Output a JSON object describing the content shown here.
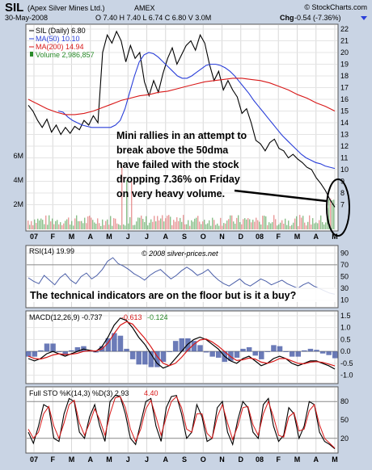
{
  "header": {
    "symbol": "SIL",
    "name": "(Apex Silver Mines Ltd.)",
    "exchange": "AMEX",
    "source": "© StockCharts.com",
    "date": "30-May-2008",
    "quote": "O 7.40  H 7.40  L 6.74  C 6.80  V 3.0M",
    "chg_label": "Chg",
    "chg_value": "-0.54 (-7.36%)"
  },
  "colors": {
    "price": "#000000",
    "ma50": "#2a3fd9",
    "ma200": "#d81818",
    "volume": "#2a8a2a",
    "macd_hist": "#3a4fa0",
    "sto_d": "#d81818",
    "panel_bg": "#ffffff"
  },
  "annotations": {
    "main": [
      "Mini rallies in an attempt to",
      "break above the 50dma",
      "have failed with the stock",
      "dropping 7.36% on Friday",
      "on very heavy volume."
    ],
    "rsi": "The technical indicators are on the floor but is it a buy?",
    "watermark": "© 2008 silver-prices.net"
  },
  "chart_data": [
    {
      "type": "line",
      "name": "price",
      "legend": [
        "SIL (Daily) 6.80",
        "MA(50) 10.10",
        "MA(200) 14.94",
        "Volume 2,986,857"
      ],
      "x_labels": [
        "07",
        "F",
        "M",
        "A",
        "M",
        "J",
        "J",
        "A",
        "S",
        "O",
        "N",
        "D",
        "08",
        "F",
        "M",
        "A",
        "M"
      ],
      "ylim": [
        6,
        22
      ],
      "y_ticks": [
        7,
        8,
        9,
        10,
        11,
        12,
        13,
        14,
        15,
        16,
        17,
        18,
        19,
        20,
        21,
        22
      ],
      "volume_ticks": [
        "6M",
        "4M",
        "2M"
      ],
      "series": [
        {
          "name": "SIL",
          "values": [
            15.5,
            15.0,
            14.2,
            13.6,
            14.3,
            13.2,
            13.8,
            13.0,
            13.6,
            13.1,
            13.7,
            13.4,
            14.2,
            13.8,
            14.6,
            14.0,
            20.0,
            21.5,
            20.8,
            21.8,
            21.0,
            19.2,
            20.6,
            19.5,
            20.0,
            17.5,
            16.3,
            17.6,
            16.6,
            18.2,
            19.5,
            20.4,
            19.0,
            19.8,
            20.6,
            21.0,
            20.2,
            21.5,
            20.8,
            19.0,
            17.6,
            18.4,
            16.8,
            17.6,
            16.8,
            16.2,
            14.8,
            15.2,
            14.0,
            12.5,
            12.2,
            11.6,
            12.3,
            12.6,
            11.8,
            11.6,
            11.0,
            11.3,
            10.9,
            10.6,
            10.2,
            10.0,
            9.3,
            8.8,
            8.2,
            7.4,
            6.8
          ]
        },
        {
          "name": "MA(50)",
          "values": [
            15.0,
            14.9,
            14.5,
            14.2,
            14.0,
            13.8,
            13.7,
            13.6,
            13.6,
            13.6,
            13.6,
            13.6,
            13.8,
            14.2,
            15.2,
            16.6,
            18.0,
            19.2,
            19.8,
            20.0,
            19.9,
            19.6,
            19.2,
            18.8,
            18.4,
            18.0,
            17.8,
            17.8,
            18.0,
            18.3,
            18.6,
            18.9,
            19.0,
            19.0,
            18.9,
            18.7,
            18.4,
            18.0,
            17.5,
            17.0,
            16.5,
            15.9,
            15.4,
            14.9,
            14.4,
            13.9,
            13.4,
            12.9,
            12.5,
            12.1,
            11.7,
            11.3,
            11.0,
            10.8,
            10.6,
            10.5,
            10.3,
            10.2,
            10.1
          ]
        },
        {
          "name": "MA(200)",
          "values": [
            16.0,
            15.6,
            15.2,
            14.9,
            14.7,
            14.7,
            14.8,
            15.0,
            15.3,
            15.6,
            15.9,
            16.1,
            16.3,
            16.4,
            16.6,
            16.7,
            16.9,
            17.1,
            17.3,
            17.5,
            17.6,
            17.7,
            17.8,
            17.8,
            17.7,
            17.6,
            17.4,
            17.1,
            16.8,
            16.4,
            16.1,
            15.7,
            15.4,
            15.0
          ]
        }
      ]
    },
    {
      "type": "line",
      "name": "RSI(14)",
      "legend": "RSI(14) 19.99",
      "ylim": [
        0,
        100
      ],
      "y_ticks": [
        10,
        30,
        50,
        70,
        90
      ],
      "series": [
        {
          "name": "RSI(14)",
          "values": [
            48,
            42,
            38,
            52,
            44,
            36,
            48,
            55,
            44,
            38,
            50,
            56,
            46,
            52,
            62,
            76,
            82,
            72,
            68,
            62,
            55,
            50,
            44,
            52,
            58,
            62,
            54,
            46,
            52,
            60,
            66,
            60,
            52,
            56,
            62,
            52,
            44,
            38,
            34,
            40,
            46,
            38,
            34,
            40,
            46,
            42,
            36,
            40,
            44,
            38,
            34,
            30,
            36,
            40,
            34,
            30,
            26,
            22,
            20
          ]
        }
      ]
    },
    {
      "type": "line",
      "name": "MACD(12,26,9)",
      "legend": [
        "MACD(12,26,9) -0.737",
        "-0.613",
        "-0.124"
      ],
      "ylim": [
        -1.25,
        1.6
      ],
      "y_ticks": [
        -1.0,
        -0.5,
        0.0,
        0.5,
        1.0,
        1.5
      ],
      "series": [
        {
          "name": "MACD",
          "values": [
            -0.3,
            -0.4,
            -0.3,
            -0.1,
            0.0,
            -0.1,
            -0.2,
            -0.1,
            0.0,
            0.1,
            0.05,
            0.0,
            0.2,
            0.6,
            1.1,
            1.4,
            1.3,
            1.0,
            0.6,
            0.3,
            -0.1,
            -0.5,
            -0.7,
            -0.6,
            -0.3,
            0.0,
            0.3,
            0.5,
            0.6,
            0.5,
            0.3,
            0.1,
            -0.2,
            -0.4,
            -0.5,
            -0.3,
            -0.2,
            -0.4,
            -0.6,
            -0.5,
            -0.3,
            -0.2,
            -0.3,
            -0.5,
            -0.6,
            -0.5,
            -0.4,
            -0.4,
            -0.5,
            -0.6,
            -0.74
          ]
        },
        {
          "name": "Signal",
          "values": [
            -0.2,
            -0.3,
            -0.32,
            -0.25,
            -0.15,
            -0.1,
            -0.13,
            -0.12,
            -0.08,
            0.0,
            0.03,
            0.02,
            0.1,
            0.35,
            0.75,
            1.1,
            1.25,
            1.15,
            0.85,
            0.55,
            0.2,
            -0.2,
            -0.5,
            -0.6,
            -0.5,
            -0.25,
            0.05,
            0.3,
            0.48,
            0.52,
            0.4,
            0.22,
            0.0,
            -0.22,
            -0.38,
            -0.35,
            -0.28,
            -0.32,
            -0.45,
            -0.5,
            -0.42,
            -0.3,
            -0.3,
            -0.4,
            -0.5,
            -0.52,
            -0.45,
            -0.43,
            -0.46,
            -0.53,
            -0.61
          ]
        }
      ]
    },
    {
      "type": "line",
      "name": "Full STO",
      "legend": [
        "Full STO %K(14,3) %D(3) 2.93",
        "4.40"
      ],
      "x_labels": [
        "07",
        "F",
        "M",
        "A",
        "M",
        "J",
        "J",
        "A",
        "S",
        "O",
        "N",
        "D",
        "08",
        "F",
        "M",
        "A",
        "M"
      ],
      "ylim": [
        0,
        100
      ],
      "y_ticks": [
        20,
        50,
        80
      ],
      "series": [
        {
          "name": "%K",
          "values": [
            30,
            12,
            40,
            75,
            70,
            20,
            15,
            60,
            85,
            80,
            30,
            20,
            55,
            75,
            40,
            15,
            80,
            90,
            88,
            60,
            20,
            10,
            45,
            80,
            85,
            40,
            15,
            70,
            88,
            90,
            60,
            20,
            30,
            75,
            55,
            15,
            20,
            70,
            80,
            30,
            10,
            50,
            80,
            70,
            30,
            20,
            75,
            85,
            40,
            15,
            25,
            70,
            60,
            20,
            40,
            80,
            75,
            30,
            15,
            10,
            3
          ]
        },
        {
          "name": "%D",
          "values": [
            35,
            20,
            30,
            60,
            72,
            40,
            20,
            45,
            75,
            82,
            45,
            25,
            45,
            68,
            50,
            25,
            60,
            86,
            88,
            70,
            35,
            15,
            35,
            68,
            82,
            55,
            25,
            55,
            80,
            88,
            70,
            35,
            30,
            60,
            60,
            28,
            20,
            55,
            75,
            45,
            18,
            40,
            70,
            72,
            42,
            25,
            60,
            80,
            55,
            25,
            22,
            55,
            62,
            32,
            35,
            65,
            75,
            42,
            20,
            12,
            4
          ]
        }
      ]
    }
  ]
}
